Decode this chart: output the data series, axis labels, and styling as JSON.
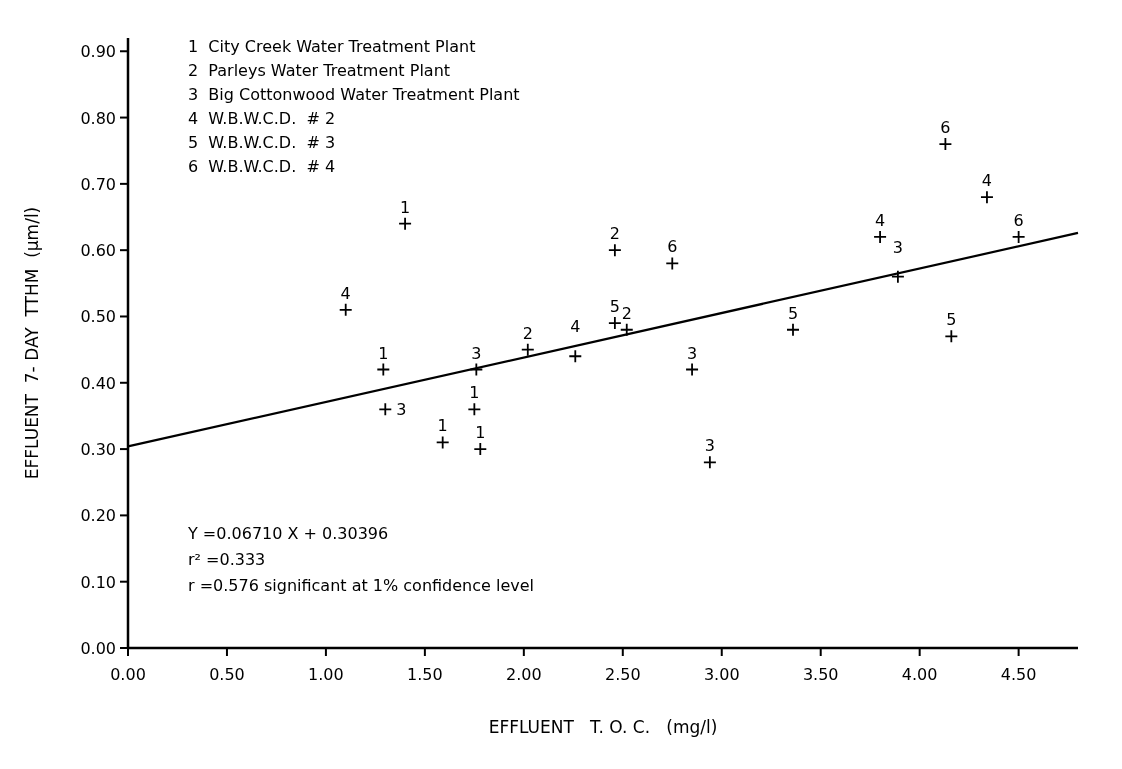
{
  "chart_data": {
    "type": "scatter",
    "xlabel": "EFFLUENT   T. O. C.   (mg/l)",
    "ylabel": "EFFLUENT  7- DAY  TTHM  (μm/l)",
    "xlim": [
      0,
      4.8
    ],
    "ylim": [
      0,
      0.92
    ],
    "xticks": [
      {
        "value": 0,
        "label": "0.00"
      },
      {
        "value": 0.5,
        "label": "0.50"
      },
      {
        "value": 1,
        "label": "1.00"
      },
      {
        "value": 1.5,
        "label": "1.50"
      },
      {
        "value": 2,
        "label": "2.00"
      },
      {
        "value": 2.5,
        "label": "2.50"
      },
      {
        "value": 3,
        "label": "3.00"
      },
      {
        "value": 3.5,
        "label": "3.50"
      },
      {
        "value": 4,
        "label": "4.00"
      },
      {
        "value": 4.5,
        "label": "4.50"
      }
    ],
    "yticks": [
      {
        "value": 0,
        "label": "0.00"
      },
      {
        "value": 0.1,
        "label": "0.10"
      },
      {
        "value": 0.2,
        "label": "0.20"
      },
      {
        "value": 0.3,
        "label": "0.30"
      },
      {
        "value": 0.4,
        "label": "0.40"
      },
      {
        "value": 0.5,
        "label": "0.50"
      },
      {
        "value": 0.6,
        "label": "0.60"
      },
      {
        "value": 0.7,
        "label": "0.70"
      },
      {
        "value": 0.8,
        "label": "0.80"
      },
      {
        "value": 0.9,
        "label": "0.90"
      }
    ],
    "marker": "cross",
    "series": [
      {
        "name": "1",
        "color": "#000000",
        "x": [
          1.4,
          1.29,
          1.59,
          1.75,
          1.78
        ],
        "values": [
          0.64,
          0.42,
          0.31,
          0.36,
          0.3
        ]
      },
      {
        "name": "2",
        "color": "#000000",
        "x": [
          2.02,
          2.46,
          2.52
        ],
        "values": [
          0.45,
          0.6,
          0.48
        ]
      },
      {
        "name": "3",
        "color": "#000000",
        "x": [
          1.3,
          1.76,
          2.85,
          2.94,
          3.89
        ],
        "values": [
          0.36,
          0.42,
          0.42,
          0.28,
          0.56
        ]
      },
      {
        "name": "4",
        "color": "#000000",
        "x": [
          1.1,
          2.26,
          3.8,
          4.34
        ],
        "values": [
          0.51,
          0.44,
          0.62,
          0.68
        ]
      },
      {
        "name": "5",
        "color": "#000000",
        "x": [
          2.46,
          3.36,
          4.16
        ],
        "values": [
          0.49,
          0.48,
          0.47
        ]
      },
      {
        "name": "6",
        "color": "#000000",
        "x": [
          2.75,
          4.13,
          4.5
        ],
        "values": [
          0.58,
          0.76,
          0.62
        ]
      },
      {
        "type": "line",
        "marker": "none",
        "color": "#000000",
        "x": [
          0,
          4.8
        ],
        "values": [
          0.304,
          0.626
        ],
        "line_style": "solid"
      }
    ],
    "annotations": [
      "1  City Creek Water Treatment Plant",
      "2  Parleys Water Treatment Plant",
      "3  Big Cottonwood Water Treatment Plant",
      "4  W.B.W.C.D.  # 2",
      "5  W.B.W.C.D.  # 3",
      "6  W.B.W.C.D.  # 4",
      "Y =0.06710 X + 0.30396",
      "r² =0.333",
      "r =0.576 significant at 1% confidence level"
    ]
  }
}
